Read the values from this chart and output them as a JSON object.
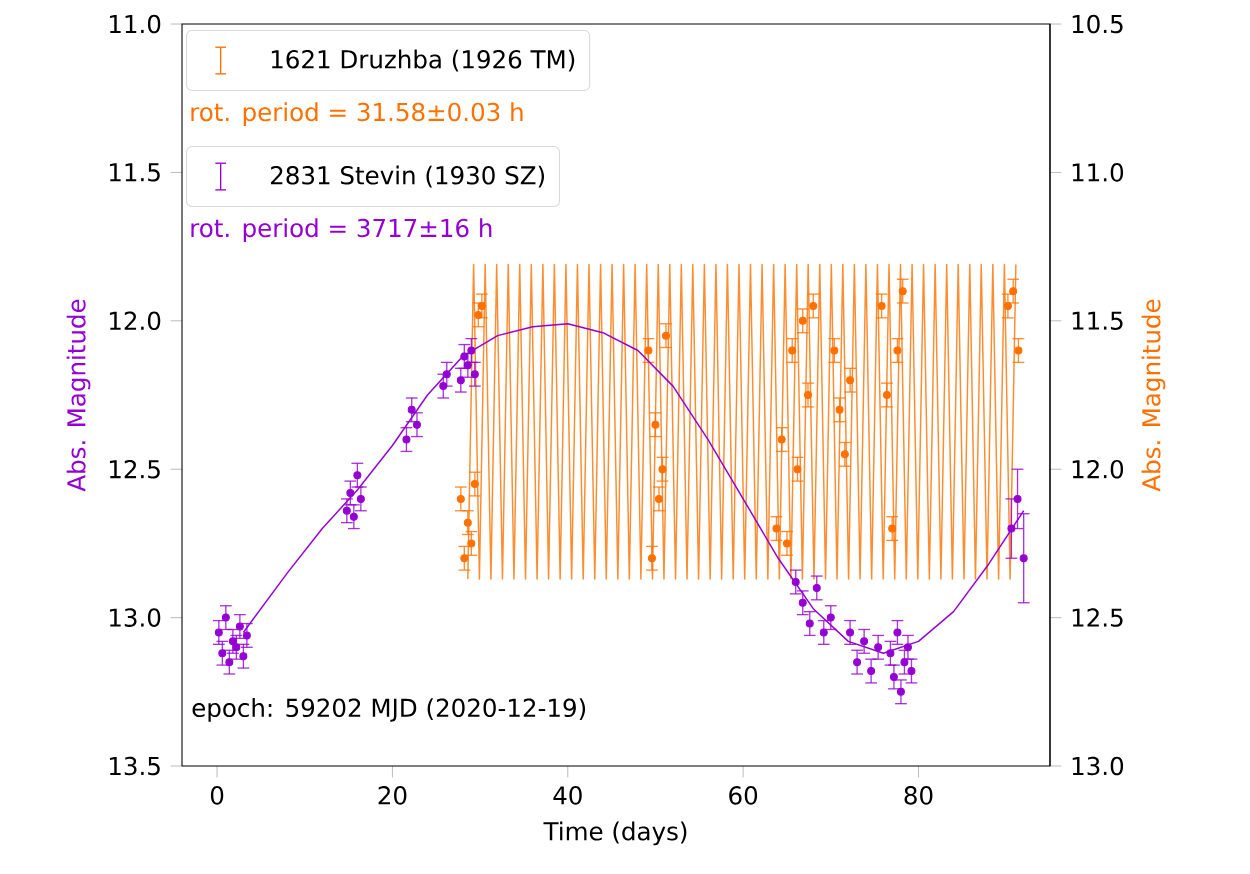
{
  "chart_data": {
    "type": "scatter",
    "xlabel": "Time (days)",
    "ylabel": "Abs. Magnitude",
    "y2label": "Abs. Magnitude",
    "xlim": [
      -4,
      95
    ],
    "xticks": [
      0,
      20,
      40,
      60,
      80
    ],
    "ylim": [
      13.5,
      11.0
    ],
    "yticks": [
      {
        "value": 11.0,
        "label": "11.0"
      },
      {
        "value": 11.5,
        "label": "11.5"
      },
      {
        "value": 12.0,
        "label": "12.0"
      },
      {
        "value": 12.5,
        "label": "12.5"
      },
      {
        "value": 13.0,
        "label": "13.0"
      },
      {
        "value": 13.5,
        "label": "13.5"
      }
    ],
    "y2lim": [
      13.0,
      10.5
    ],
    "y2ticks": [
      {
        "value": 10.5,
        "label": "10.5"
      },
      {
        "value": 11.0,
        "label": "11.0"
      },
      {
        "value": 11.5,
        "label": "11.5"
      },
      {
        "value": 12.0,
        "label": "12.0"
      },
      {
        "value": 12.5,
        "label": "12.5"
      },
      {
        "value": 13.0,
        "label": "13.0"
      }
    ],
    "legend": "top left",
    "grid": false,
    "annotations": [
      "rot. period = 31.58±0.03 h",
      "rot. period = 3717±16 h",
      "epoch: 59202 MJD (2020-12-19)"
    ],
    "series": [
      {
        "type": "line",
        "axis": "y2",
        "color": "#ff8c2e",
        "line_style": "solid",
        "marker": "none",
        "x": [
          28.6,
          29.26,
          29.92,
          30.58,
          31.23,
          31.89,
          32.55,
          33.21,
          33.86,
          34.52,
          35.18,
          35.84,
          36.5,
          37.16,
          37.81,
          38.47,
          39.13,
          39.79,
          40.44,
          41.1,
          41.76,
          42.42,
          43.08,
          43.74,
          44.39,
          45.05,
          45.71,
          46.37,
          47.02,
          47.68,
          48.34,
          49.0,
          49.66,
          50.32,
          50.97,
          51.63,
          52.29,
          52.95,
          53.6,
          54.26,
          54.92,
          55.58,
          56.24,
          56.9,
          57.55,
          58.21,
          58.87,
          59.53,
          60.18,
          60.84,
          61.5,
          62.16,
          62.82,
          63.48,
          64.13,
          64.79,
          65.45,
          66.11,
          66.76,
          67.42,
          68.08,
          68.74,
          69.4,
          70.06,
          70.71,
          71.37,
          72.03,
          72.69,
          73.34,
          74.0,
          74.66,
          75.32,
          75.98,
          76.64,
          77.29,
          77.95,
          78.61,
          79.27,
          79.92,
          80.58,
          81.24,
          81.9,
          82.56,
          83.22,
          83.87,
          84.53,
          85.19,
          85.85,
          86.5,
          87.16,
          87.82,
          88.48,
          89.14,
          89.8,
          90.45,
          91.11
        ],
        "values": [
          12.37,
          11.31,
          12.37,
          11.31,
          12.37,
          11.31,
          12.37,
          11.31,
          12.37,
          11.31,
          12.37,
          11.31,
          12.37,
          11.31,
          12.37,
          11.31,
          12.37,
          11.31,
          12.37,
          11.31,
          12.37,
          11.31,
          12.37,
          11.31,
          12.37,
          11.31,
          12.37,
          11.31,
          12.37,
          11.31,
          12.37,
          11.31,
          12.37,
          11.31,
          12.37,
          11.31,
          12.37,
          11.31,
          12.37,
          11.31,
          12.37,
          11.31,
          12.37,
          11.31,
          12.37,
          11.31,
          12.37,
          11.31,
          12.37,
          11.31,
          12.37,
          11.31,
          12.37,
          11.31,
          12.37,
          11.31,
          12.37,
          11.31,
          12.37,
          11.31,
          12.37,
          11.31,
          12.37,
          11.31,
          12.37,
          11.31,
          12.37,
          11.31,
          12.37,
          11.31,
          12.37,
          11.31,
          12.37,
          11.31,
          12.37,
          11.31,
          12.37,
          11.31,
          12.37,
          11.31,
          12.37,
          11.31,
          12.37,
          11.31,
          12.37,
          11.31,
          12.37,
          11.31,
          12.37,
          11.31,
          12.37,
          11.31,
          12.37,
          11.31,
          12.37,
          11.31
        ]
      },
      {
        "name": "1621 Druzhba (1926 TM)",
        "axis": "y2",
        "color": "#ff7000",
        "marker": "circle",
        "x": [
          27.8,
          28.2,
          28.6,
          29.0,
          29.4,
          29.8,
          30.2,
          49.2,
          49.6,
          50.0,
          50.4,
          50.8,
          51.2,
          63.8,
          64.4,
          65.0,
          65.6,
          66.2,
          66.8,
          67.4,
          68.0,
          70.4,
          71.0,
          71.6,
          72.2,
          75.8,
          76.4,
          77.0,
          77.6,
          78.2,
          90.2,
          90.8,
          91.4
        ],
        "values": [
          12.1,
          12.3,
          12.18,
          12.25,
          12.05,
          11.48,
          11.45,
          11.6,
          12.3,
          11.85,
          12.1,
          12.0,
          11.55,
          12.2,
          11.9,
          12.25,
          11.6,
          12.0,
          11.5,
          11.75,
          11.45,
          11.6,
          11.8,
          11.95,
          11.7,
          11.45,
          11.75,
          12.2,
          11.6,
          11.4,
          11.45,
          11.4,
          11.6
        ],
        "errors": [
          0.04,
          0.04,
          0.04,
          0.04,
          0.04,
          0.04,
          0.04,
          0.04,
          0.04,
          0.04,
          0.04,
          0.04,
          0.04,
          0.04,
          0.04,
          0.04,
          0.04,
          0.04,
          0.04,
          0.04,
          0.04,
          0.04,
          0.04,
          0.04,
          0.04,
          0.04,
          0.04,
          0.04,
          0.04,
          0.04,
          0.04,
          0.04,
          0.04
        ]
      },
      {
        "type": "line",
        "color": "#9400d3",
        "line_style": "solid",
        "marker": "none",
        "x": [
          3,
          8,
          12,
          16,
          20,
          24,
          28,
          32,
          36,
          40,
          44,
          48,
          52,
          56,
          60,
          64,
          68,
          72,
          76,
          80,
          84,
          88,
          92
        ],
        "values": [
          13.05,
          12.85,
          12.7,
          12.57,
          12.42,
          12.25,
          12.12,
          12.05,
          12.02,
          12.01,
          12.04,
          12.1,
          12.22,
          12.4,
          12.6,
          12.8,
          12.97,
          13.08,
          13.12,
          13.08,
          12.98,
          12.82,
          12.64
        ]
      },
      {
        "name": "2831 Stevin (1930 SZ)",
        "color": "#9400d3",
        "marker": "circle",
        "x": [
          0.2,
          0.6,
          1.0,
          1.4,
          1.8,
          2.2,
          2.6,
          3.0,
          3.4,
          14.8,
          15.2,
          15.6,
          16.0,
          16.4,
          21.6,
          22.2,
          22.8,
          25.8,
          26.2,
          27.8,
          28.2,
          28.6,
          29.0,
          29.4,
          66.0,
          66.8,
          67.6,
          68.4,
          69.2,
          70.0,
          72.2,
          73.0,
          73.8,
          74.6,
          75.4,
          76.8,
          77.2,
          77.6,
          78.0,
          78.4,
          78.8,
          79.2,
          90.6,
          91.3,
          92.0
        ],
        "values": [
          13.05,
          13.12,
          13.0,
          13.15,
          13.08,
          13.1,
          13.03,
          13.13,
          13.06,
          12.64,
          12.58,
          12.66,
          12.52,
          12.6,
          12.4,
          12.3,
          12.35,
          12.22,
          12.18,
          12.2,
          12.12,
          12.15,
          12.1,
          12.18,
          12.88,
          12.95,
          13.02,
          12.9,
          13.05,
          13.0,
          13.05,
          13.15,
          13.08,
          13.18,
          13.1,
          13.12,
          13.2,
          13.05,
          13.25,
          13.15,
          13.1,
          13.18,
          12.7,
          12.6,
          12.8
        ],
        "errors": [
          0.04,
          0.04,
          0.04,
          0.04,
          0.04,
          0.04,
          0.04,
          0.04,
          0.04,
          0.04,
          0.04,
          0.04,
          0.04,
          0.04,
          0.04,
          0.04,
          0.04,
          0.04,
          0.04,
          0.04,
          0.04,
          0.04,
          0.04,
          0.04,
          0.04,
          0.04,
          0.04,
          0.04,
          0.04,
          0.04,
          0.04,
          0.04,
          0.04,
          0.04,
          0.04,
          0.04,
          0.04,
          0.04,
          0.04,
          0.04,
          0.04,
          0.04,
          0.1,
          0.1,
          0.15
        ]
      }
    ]
  }
}
